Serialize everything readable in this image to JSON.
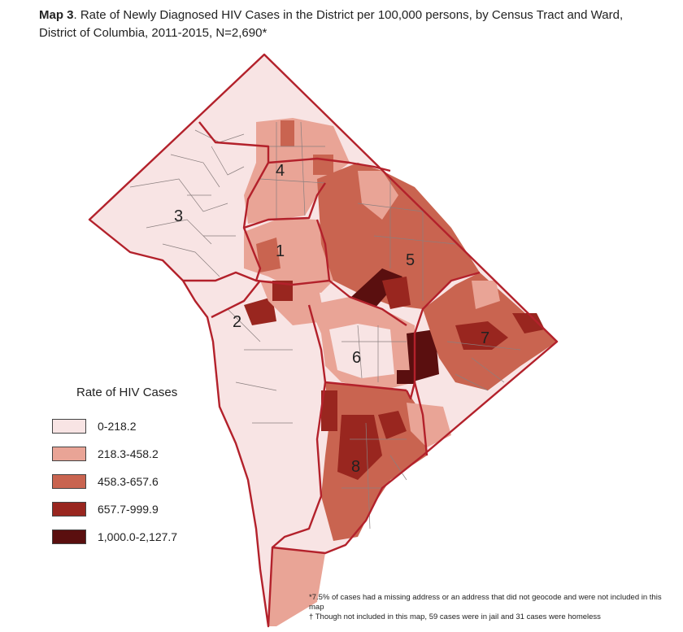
{
  "title": {
    "bold": "Map 3",
    "text": ". Rate of Newly Diagnosed HIV Cases in the District per 100,000 persons, by Census Tract and Ward,",
    "line2": "District of Columbia, 2011-2015, N=2,690*"
  },
  "legend": {
    "title": "Rate of HIV Cases",
    "items": [
      {
        "label": "0-218.2",
        "color": "#f8e4e4"
      },
      {
        "label": "218.3-458.2",
        "color": "#e9a496"
      },
      {
        "label": "458.3-657.6",
        "color": "#c96450"
      },
      {
        "label": "657.7-999.9",
        "color": "#99261f"
      },
      {
        "label": "1,000.0-2,127.7",
        "color": "#5a0f0f"
      }
    ]
  },
  "wards": [
    "1",
    "2",
    "3",
    "4",
    "5",
    "6",
    "7",
    "8"
  ],
  "footnotes": [
    "*7.5% of cases had a missing address or an address that did not geocode and were not included in this map",
    "† Though not included in this map, 59 cases were in jail and 31 cases were homeless"
  ],
  "colors": {
    "boundary": "#b3212b",
    "tract": "#8a7f7f"
  }
}
